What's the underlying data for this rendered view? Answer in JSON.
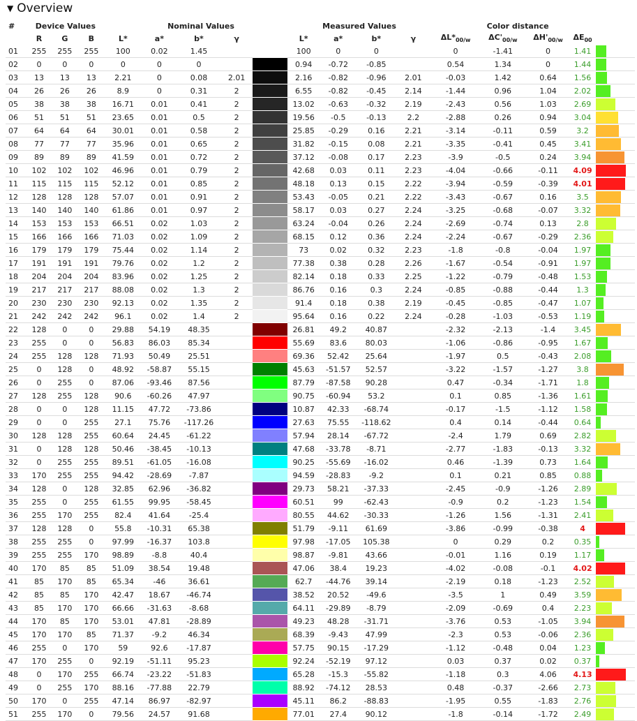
{
  "section_title": "Overview",
  "groups": {
    "index": "#",
    "device": "Device Values",
    "nominal": "Nominal Values",
    "measured": "Measured Values",
    "distance": "Color distance"
  },
  "columns": {
    "r": "R",
    "g": "G",
    "b": "B",
    "L": "L*",
    "a": "a*",
    "bs": "b*",
    "gamma": "γ",
    "dL": "ΔL*",
    "dC": "ΔC'",
    "dH": "ΔH'",
    "dE": "ΔE",
    "sub00w": "00/w",
    "sub00": "00"
  },
  "rows": [
    [
      "01",
      "255",
      "255",
      "255",
      "100",
      "0.02",
      "1.45",
      "",
      "#ffffff",
      "100",
      "0",
      "0",
      "",
      "0",
      "-1.41",
      "0",
      "1.41"
    ],
    [
      "02",
      "0",
      "0",
      "0",
      "0",
      "0",
      "0",
      "",
      "#000000",
      "0.94",
      "-0.72",
      "-0.85",
      "",
      "0.54",
      "1.34",
      "0",
      "1.44"
    ],
    [
      "03",
      "13",
      "13",
      "13",
      "2.21",
      "0",
      "0.08",
      "2.01",
      "#0d0d0d",
      "2.16",
      "-0.82",
      "-0.96",
      "2.01",
      "-0.03",
      "1.42",
      "0.64",
      "1.56"
    ],
    [
      "04",
      "26",
      "26",
      "26",
      "8.9",
      "0",
      "0.31",
      "2",
      "#1a1a1a",
      "6.55",
      "-0.82",
      "-0.45",
      "2.14",
      "-1.44",
      "0.96",
      "1.04",
      "2.02"
    ],
    [
      "05",
      "38",
      "38",
      "38",
      "16.71",
      "0.01",
      "0.41",
      "2",
      "#262626",
      "13.02",
      "-0.63",
      "-0.32",
      "2.19",
      "-2.43",
      "0.56",
      "1.03",
      "2.69"
    ],
    [
      "06",
      "51",
      "51",
      "51",
      "23.65",
      "0.01",
      "0.5",
      "2",
      "#333333",
      "19.56",
      "-0.5",
      "-0.13",
      "2.2",
      "-2.88",
      "0.26",
      "0.94",
      "3.04"
    ],
    [
      "07",
      "64",
      "64",
      "64",
      "30.01",
      "0.01",
      "0.58",
      "2",
      "#404040",
      "25.85",
      "-0.29",
      "0.16",
      "2.21",
      "-3.14",
      "-0.11",
      "0.59",
      "3.2"
    ],
    [
      "08",
      "77",
      "77",
      "77",
      "35.96",
      "0.01",
      "0.65",
      "2",
      "#4d4d4d",
      "31.82",
      "-0.15",
      "0.08",
      "2.21",
      "-3.35",
      "-0.41",
      "0.45",
      "3.41"
    ],
    [
      "09",
      "89",
      "89",
      "89",
      "41.59",
      "0.01",
      "0.72",
      "2",
      "#595959",
      "37.12",
      "-0.08",
      "0.17",
      "2.23",
      "-3.9",
      "-0.5",
      "0.24",
      "3.94"
    ],
    [
      "10",
      "102",
      "102",
      "102",
      "46.96",
      "0.01",
      "0.79",
      "2",
      "#666666",
      "42.68",
      "0.03",
      "0.11",
      "2.23",
      "-4.04",
      "-0.66",
      "-0.11",
      "4.09"
    ],
    [
      "11",
      "115",
      "115",
      "115",
      "52.12",
      "0.01",
      "0.85",
      "2",
      "#737373",
      "48.18",
      "0.13",
      "0.15",
      "2.22",
      "-3.94",
      "-0.59",
      "-0.39",
      "4.01"
    ],
    [
      "12",
      "128",
      "128",
      "128",
      "57.07",
      "0.01",
      "0.91",
      "2",
      "#808080",
      "53.43",
      "-0.05",
      "0.21",
      "2.22",
      "-3.43",
      "-0.67",
      "0.16",
      "3.5"
    ],
    [
      "13",
      "140",
      "140",
      "140",
      "61.86",
      "0.01",
      "0.97",
      "2",
      "#8c8c8c",
      "58.17",
      "0.03",
      "0.27",
      "2.24",
      "-3.25",
      "-0.68",
      "-0.07",
      "3.32"
    ],
    [
      "14",
      "153",
      "153",
      "153",
      "66.51",
      "0.02",
      "1.03",
      "2",
      "#999999",
      "63.24",
      "-0.04",
      "0.26",
      "2.24",
      "-2.69",
      "-0.74",
      "0.13",
      "2.8"
    ],
    [
      "15",
      "166",
      "166",
      "166",
      "71.03",
      "0.02",
      "1.09",
      "2",
      "#a6a6a6",
      "68.15",
      "0.12",
      "0.36",
      "2.24",
      "-2.24",
      "-0.67",
      "-0.29",
      "2.36"
    ],
    [
      "16",
      "179",
      "179",
      "179",
      "75.44",
      "0.02",
      "1.14",
      "2",
      "#b3b3b3",
      "73",
      "0.02",
      "0.32",
      "2.23",
      "-1.8",
      "-0.8",
      "-0.04",
      "1.97"
    ],
    [
      "17",
      "191",
      "191",
      "191",
      "79.76",
      "0.02",
      "1.2",
      "2",
      "#bfbfbf",
      "77.38",
      "0.38",
      "0.28",
      "2.26",
      "-1.67",
      "-0.54",
      "-0.91",
      "1.97"
    ],
    [
      "18",
      "204",
      "204",
      "204",
      "83.96",
      "0.02",
      "1.25",
      "2",
      "#cccccc",
      "82.14",
      "0.18",
      "0.33",
      "2.25",
      "-1.22",
      "-0.79",
      "-0.48",
      "1.53"
    ],
    [
      "19",
      "217",
      "217",
      "217",
      "88.08",
      "0.02",
      "1.3",
      "2",
      "#d9d9d9",
      "86.76",
      "0.16",
      "0.3",
      "2.24",
      "-0.85",
      "-0.88",
      "-0.44",
      "1.3"
    ],
    [
      "20",
      "230",
      "230",
      "230",
      "92.13",
      "0.02",
      "1.35",
      "2",
      "#e6e6e6",
      "91.4",
      "0.18",
      "0.38",
      "2.19",
      "-0.45",
      "-0.85",
      "-0.47",
      "1.07"
    ],
    [
      "21",
      "242",
      "242",
      "242",
      "96.1",
      "0.02",
      "1.4",
      "2",
      "#f2f2f2",
      "95.64",
      "0.16",
      "0.22",
      "2.24",
      "-0.28",
      "-1.03",
      "-0.53",
      "1.19"
    ],
    [
      "22",
      "128",
      "0",
      "0",
      "29.88",
      "54.19",
      "48.35",
      "",
      "#800000",
      "26.81",
      "49.2",
      "40.87",
      "",
      "-2.32",
      "-2.13",
      "-1.4",
      "3.45"
    ],
    [
      "23",
      "255",
      "0",
      "0",
      "56.83",
      "86.03",
      "85.34",
      "",
      "#ff0000",
      "55.69",
      "83.6",
      "80.03",
      "",
      "-1.06",
      "-0.86",
      "-0.95",
      "1.67"
    ],
    [
      "24",
      "255",
      "128",
      "128",
      "71.93",
      "50.49",
      "25.51",
      "",
      "#ff8080",
      "69.36",
      "52.42",
      "25.64",
      "",
      "-1.97",
      "0.5",
      "-0.43",
      "2.08"
    ],
    [
      "25",
      "0",
      "128",
      "0",
      "48.92",
      "-58.87",
      "55.15",
      "",
      "#008000",
      "45.63",
      "-51.57",
      "52.57",
      "",
      "-3.22",
      "-1.57",
      "-1.27",
      "3.8"
    ],
    [
      "26",
      "0",
      "255",
      "0",
      "87.06",
      "-93.46",
      "87.56",
      "",
      "#00ff00",
      "87.79",
      "-87.58",
      "90.28",
      "",
      "0.47",
      "-0.34",
      "-1.71",
      "1.8"
    ],
    [
      "27",
      "128",
      "255",
      "128",
      "90.6",
      "-60.26",
      "47.97",
      "",
      "#80ff80",
      "90.75",
      "-60.94",
      "53.2",
      "",
      "0.1",
      "0.85",
      "-1.36",
      "1.61"
    ],
    [
      "28",
      "0",
      "0",
      "128",
      "11.15",
      "47.72",
      "-73.86",
      "",
      "#000080",
      "10.87",
      "42.33",
      "-68.74",
      "",
      "-0.17",
      "-1.5",
      "-1.12",
      "1.58"
    ],
    [
      "29",
      "0",
      "0",
      "255",
      "27.1",
      "75.76",
      "-117.26",
      "",
      "#0000ff",
      "27.63",
      "75.55",
      "-118.62",
      "",
      "0.4",
      "0.14",
      "-0.44",
      "0.64"
    ],
    [
      "30",
      "128",
      "128",
      "255",
      "60.64",
      "24.45",
      "-61.22",
      "",
      "#8080ff",
      "57.94",
      "28.14",
      "-67.72",
      "",
      "-2.4",
      "1.79",
      "0.69",
      "2.82"
    ],
    [
      "31",
      "0",
      "128",
      "128",
      "50.46",
      "-38.45",
      "-10.13",
      "",
      "#008080",
      "47.68",
      "-33.78",
      "-8.71",
      "",
      "-2.77",
      "-1.83",
      "-0.13",
      "3.32"
    ],
    [
      "32",
      "0",
      "255",
      "255",
      "89.51",
      "-61.05",
      "-16.08",
      "",
      "#00ffff",
      "90.25",
      "-55.69",
      "-16.02",
      "",
      "0.46",
      "-1.39",
      "0.73",
      "1.64"
    ],
    [
      "33",
      "170",
      "255",
      "255",
      "94.42",
      "-28.69",
      "-7.87",
      "",
      "#aaffff",
      "94.59",
      "-28.83",
      "-9.2",
      "",
      "0.1",
      "0.21",
      "0.85",
      "0.88"
    ],
    [
      "34",
      "128",
      "0",
      "128",
      "32.85",
      "62.96",
      "-36.82",
      "",
      "#800080",
      "29.73",
      "58.21",
      "-37.33",
      "",
      "-2.45",
      "-0.9",
      "-1.26",
      "2.89"
    ],
    [
      "35",
      "255",
      "0",
      "255",
      "61.55",
      "99.95",
      "-58.45",
      "",
      "#ff00ff",
      "60.51",
      "99",
      "-62.43",
      "",
      "-0.9",
      "0.2",
      "-1.23",
      "1.54"
    ],
    [
      "36",
      "255",
      "170",
      "255",
      "82.4",
      "41.64",
      "-25.4",
      "",
      "#ffaaff",
      "80.55",
      "44.62",
      "-30.33",
      "",
      "-1.26",
      "1.56",
      "-1.31",
      "2.41"
    ],
    [
      "37",
      "128",
      "128",
      "0",
      "55.8",
      "-10.31",
      "65.38",
      "",
      "#808000",
      "51.79",
      "-9.11",
      "61.69",
      "",
      "-3.86",
      "-0.99",
      "-0.38",
      "4"
    ],
    [
      "38",
      "255",
      "255",
      "0",
      "97.99",
      "-16.37",
      "103.8",
      "",
      "#ffff00",
      "97.98",
      "-17.05",
      "105.38",
      "",
      "0",
      "0.29",
      "0.2",
      "0.35"
    ],
    [
      "39",
      "255",
      "255",
      "170",
      "98.89",
      "-8.8",
      "40.4",
      "",
      "#ffffaa",
      "98.87",
      "-9.81",
      "43.66",
      "",
      "-0.01",
      "1.16",
      "0.19",
      "1.17"
    ],
    [
      "40",
      "170",
      "85",
      "85",
      "51.09",
      "38.54",
      "19.48",
      "",
      "#aa5555",
      "47.06",
      "38.4",
      "19.23",
      "",
      "-4.02",
      "-0.08",
      "-0.1",
      "4.02"
    ],
    [
      "41",
      "85",
      "170",
      "85",
      "65.34",
      "-46",
      "36.61",
      "",
      "#55aa55",
      "62.7",
      "-44.76",
      "39.14",
      "",
      "-2.19",
      "0.18",
      "-1.23",
      "2.52"
    ],
    [
      "42",
      "85",
      "85",
      "170",
      "42.47",
      "18.67",
      "-46.74",
      "",
      "#5555aa",
      "38.52",
      "20.52",
      "-49.6",
      "",
      "-3.5",
      "1",
      "0.49",
      "3.59"
    ],
    [
      "43",
      "85",
      "170",
      "170",
      "66.66",
      "-31.63",
      "-8.68",
      "",
      "#55aaaa",
      "64.11",
      "-29.89",
      "-8.79",
      "",
      "-2.09",
      "-0.69",
      "0.4",
      "2.23"
    ],
    [
      "44",
      "170",
      "85",
      "170",
      "53.01",
      "47.81",
      "-28.89",
      "",
      "#aa55aa",
      "49.23",
      "48.28",
      "-31.71",
      "",
      "-3.76",
      "0.53",
      "-1.05",
      "3.94"
    ],
    [
      "45",
      "170",
      "170",
      "85",
      "71.37",
      "-9.2",
      "46.34",
      "",
      "#aaaa55",
      "68.39",
      "-9.43",
      "47.99",
      "",
      "-2.3",
      "0.53",
      "-0.06",
      "2.36"
    ],
    [
      "46",
      "255",
      "0",
      "170",
      "59",
      "92.6",
      "-17.87",
      "",
      "#ff00aa",
      "57.75",
      "90.15",
      "-17.29",
      "",
      "-1.12",
      "-0.48",
      "0.04",
      "1.23"
    ],
    [
      "47",
      "170",
      "255",
      "0",
      "92.19",
      "-51.11",
      "95.23",
      "",
      "#aaff00",
      "92.24",
      "-52.19",
      "97.12",
      "",
      "0.03",
      "0.37",
      "0.02",
      "0.37"
    ],
    [
      "48",
      "0",
      "170",
      "255",
      "66.74",
      "-23.22",
      "-51.83",
      "",
      "#00aaff",
      "65.28",
      "-15.3",
      "-55.82",
      "",
      "-1.18",
      "0.3",
      "4.06",
      "4.13"
    ],
    [
      "49",
      "0",
      "255",
      "170",
      "88.16",
      "-77.88",
      "22.79",
      "",
      "#00ffaa",
      "88.92",
      "-74.12",
      "28.53",
      "",
      "0.48",
      "-0.37",
      "-2.66",
      "2.73"
    ],
    [
      "50",
      "170",
      "0",
      "255",
      "47.14",
      "86.97",
      "-82.97",
      "",
      "#aa00ff",
      "45.11",
      "86.2",
      "-88.83",
      "",
      "-1.95",
      "0.55",
      "-1.83",
      "2.76"
    ],
    [
      "51",
      "255",
      "170",
      "0",
      "79.56",
      "24.57",
      "91.68",
      "",
      "#ffaa00",
      "77.01",
      "27.4",
      "90.12",
      "",
      "-1.8",
      "-0.14",
      "-1.72",
      "2.49"
    ]
  ],
  "colors": {
    "good_text": "#3a9d2a",
    "bad_text": "#e31818",
    "bar_green": "#55ee22",
    "bar_lime": "#ccff33",
    "bar_yellow": "#ffe033",
    "bar_amber": "#ffbb33",
    "bar_orange": "#f79433",
    "bar_red": "#ff1a1a"
  }
}
